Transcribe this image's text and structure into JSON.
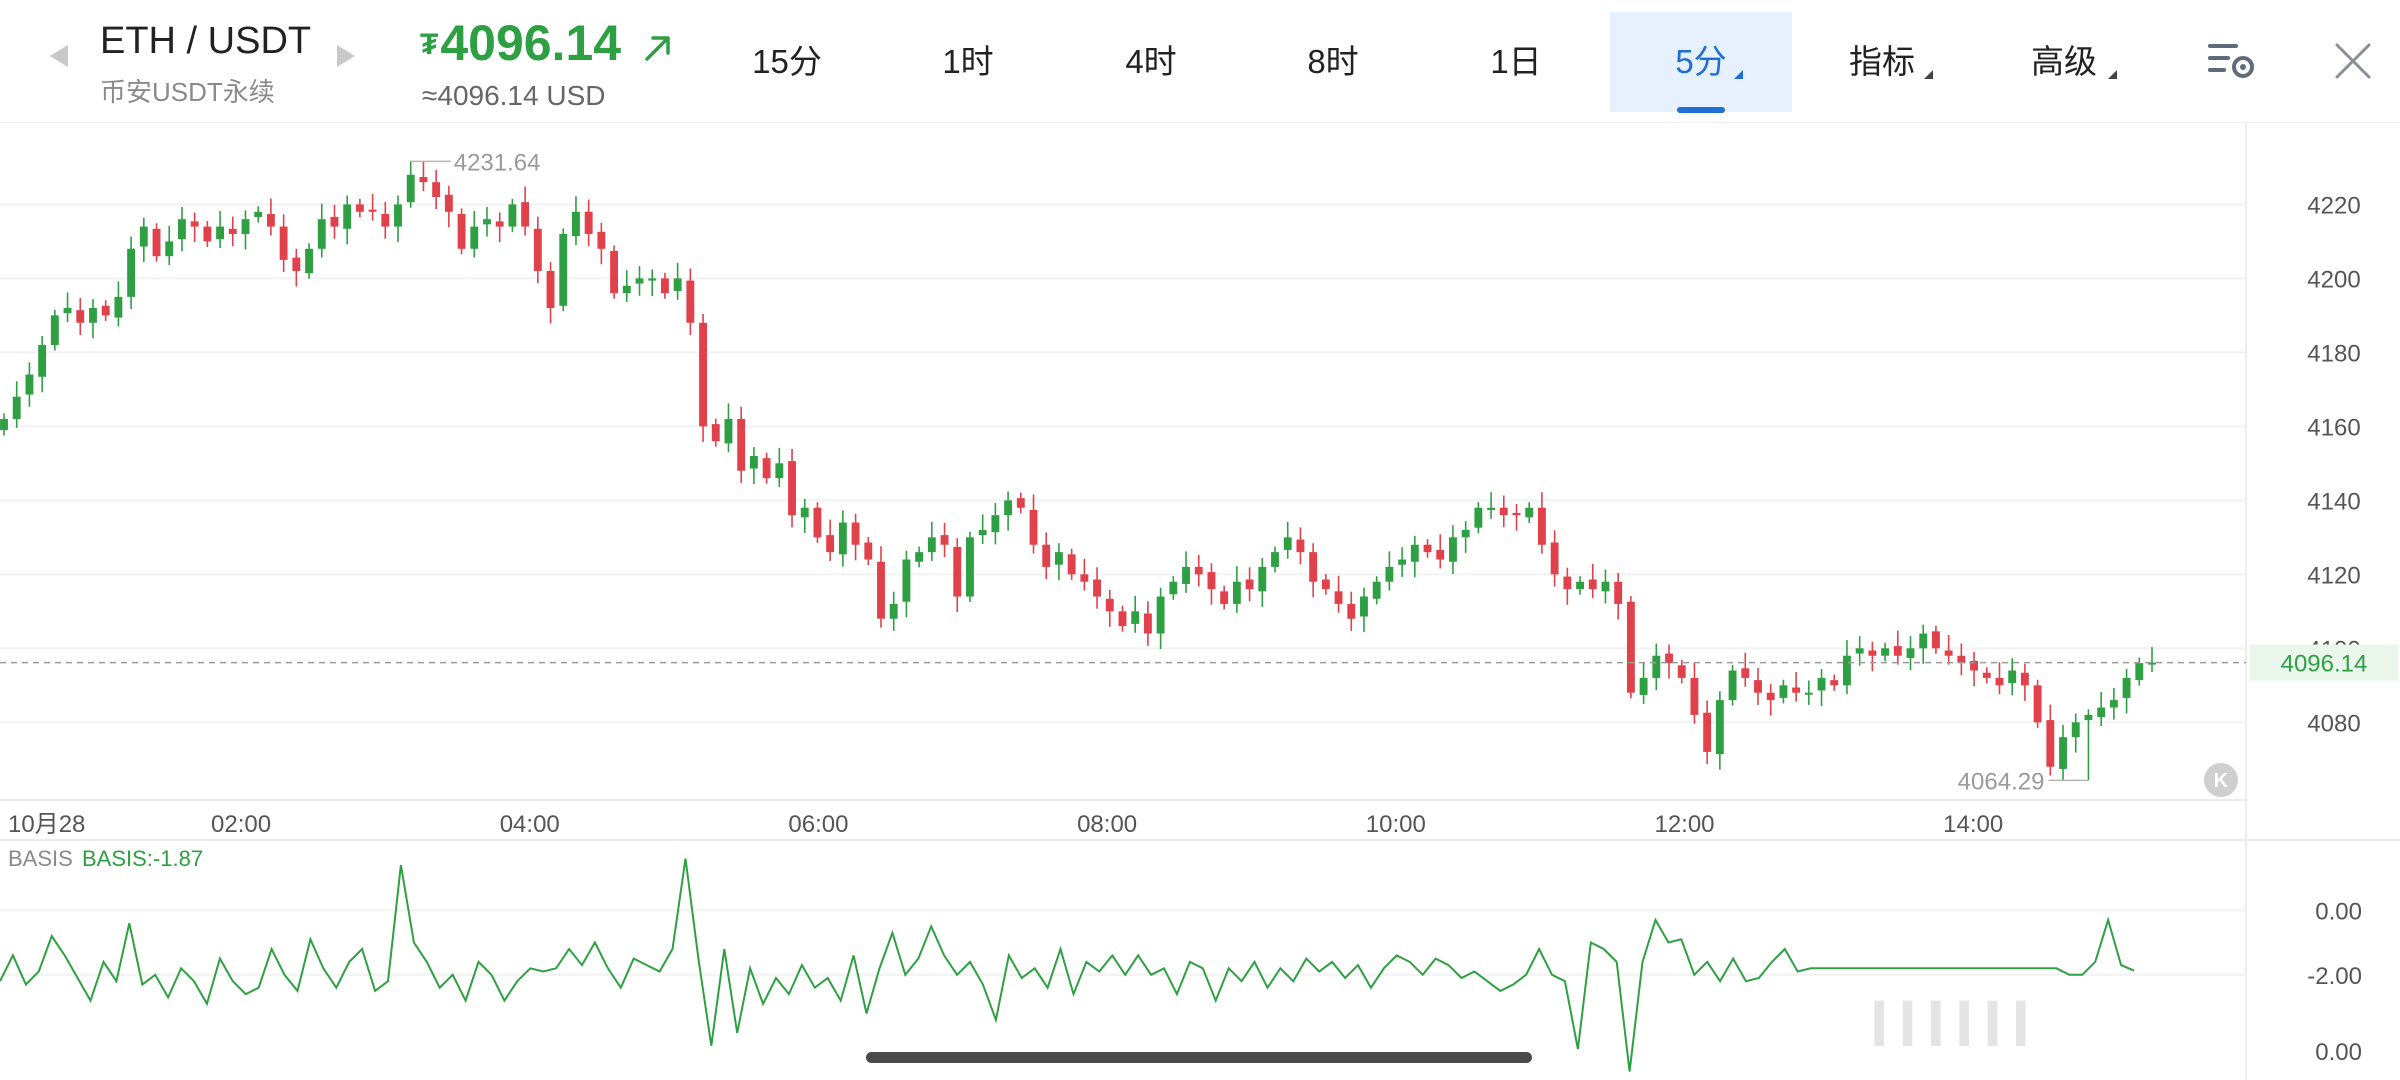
{
  "header": {
    "pair": "ETH / USDT",
    "market": "币安USDT永续",
    "currency_symbol": "₮",
    "price": "4096.14",
    "price_usd": "≈4096.14 USD",
    "up_color": "#2ea043",
    "down_color": "#e0414b",
    "accent": "#1f6fd0"
  },
  "tabs": [
    {
      "label": "15分",
      "active": false,
      "dropdown": false
    },
    {
      "label": "1时",
      "active": false,
      "dropdown": false
    },
    {
      "label": "4时",
      "active": false,
      "dropdown": false
    },
    {
      "label": "8时",
      "active": false,
      "dropdown": false
    },
    {
      "label": "1日",
      "active": false,
      "dropdown": false
    },
    {
      "label": "5分",
      "active": true,
      "dropdown": true
    },
    {
      "label": "指标",
      "active": false,
      "dropdown": true
    },
    {
      "label": "高级",
      "active": false,
      "dropdown": true
    }
  ],
  "icons": {
    "prev": "chevron-left-icon",
    "next": "chevron-right-icon",
    "trend": "arrow-up-right-icon",
    "settings": "chart-settings-icon",
    "close": "close-icon",
    "reset": "reset-k-icon"
  },
  "watermark": "IIIIII",
  "chart_data": {
    "type": "candlestick",
    "interval": "5分",
    "x_ticks": [
      {
        "label": "10月28",
        "hours": 0.63
      },
      {
        "label": "02:00",
        "hours": 2.0
      },
      {
        "label": "04:00",
        "hours": 4.0
      },
      {
        "label": "06:00",
        "hours": 6.0
      },
      {
        "label": "08:00",
        "hours": 8.0
      },
      {
        "label": "10:00",
        "hours": 10.0
      },
      {
        "label": "12:00",
        "hours": 12.0
      },
      {
        "label": "14:00",
        "hours": 14.0
      }
    ],
    "x_range_hours": [
      0.33,
      15.89
    ],
    "y_ticks": [
      4080,
      4100,
      4120,
      4140,
      4160,
      4180,
      4200,
      4220
    ],
    "y_range": [
      4059,
      4242
    ],
    "high_label": "4231.64",
    "low_label": "4064.29",
    "last_price_label": "4096.14",
    "last_price": 4096.14,
    "closes": [
      4162,
      4168,
      4174,
      4182,
      4190,
      4192,
      4188,
      4192,
      4190,
      4195,
      4208,
      4214,
      4206,
      4210,
      4216,
      4214,
      4210,
      4214,
      4212,
      4216,
      4218,
      4214,
      4205,
      4202,
      4208,
      4216,
      4214,
      4220,
      4218,
      4218,
      4214,
      4220,
      4228,
      4226,
      4222,
      4218,
      4208,
      4214,
      4216,
      4214,
      4220,
      4214,
      4202,
      4192,
      4212,
      4218,
      4212,
      4208,
      4196,
      4198,
      4200,
      4200,
      4196,
      4200,
      4188,
      4160,
      4156,
      4162,
      4148,
      4152,
      4146,
      4150,
      4136,
      4138,
      4130,
      4126,
      4134,
      4128,
      4124,
      4108,
      4112,
      4124,
      4126,
      4130,
      4128,
      4114,
      4130,
      4132,
      4136,
      4140,
      4138,
      4128,
      4122,
      4126,
      4120,
      4118,
      4114,
      4110,
      4106,
      4110,
      4104,
      4114,
      4118,
      4122,
      4120,
      4116,
      4112,
      4118,
      4116,
      4122,
      4126,
      4130,
      4126,
      4118,
      4116,
      4112,
      4108,
      4114,
      4118,
      4122,
      4124,
      4128,
      4126,
      4124,
      4130,
      4132,
      4138,
      4138,
      4136,
      4136,
      4138,
      4128,
      4120,
      4116,
      4118,
      4116,
      4118,
      4112,
      4088,
      4092,
      4098,
      4096,
      4092,
      4082,
      4072,
      4086,
      4094,
      4092,
      4088,
      4086,
      4090,
      4088,
      4088,
      4092,
      4090,
      4098,
      4100,
      4098,
      4100,
      4098,
      4100,
      4104,
      4100,
      4098,
      4096,
      4094,
      4092,
      4090,
      4094,
      4090,
      4080,
      4068,
      4076,
      4080,
      4082,
      4084,
      4086,
      4092,
      4096,
      4096.14
    ]
  },
  "basis": {
    "label": "BASIS",
    "value_label": "BASIS:-1.87",
    "y_ticks": [
      "0.00",
      "-2.00",
      "0.00"
    ],
    "y_range": [
      -5.2,
      1.0
    ],
    "color": "#2ea043",
    "values": [
      -2.2,
      -1.4,
      -2.3,
      -1.9,
      -0.8,
      -1.4,
      -2.1,
      -2.8,
      -1.6,
      -2.2,
      -0.4,
      -2.3,
      -2.0,
      -2.7,
      -1.8,
      -2.2,
      -2.9,
      -1.5,
      -2.2,
      -2.6,
      -2.4,
      -1.2,
      -2.0,
      -2.5,
      -0.9,
      -1.8,
      -2.4,
      -1.6,
      -1.2,
      -2.5,
      -2.2,
      1.4,
      -1.0,
      -1.6,
      -2.4,
      -2.0,
      -2.8,
      -1.6,
      -2.0,
      -2.8,
      -2.2,
      -1.8,
      -1.9,
      -1.8,
      -1.2,
      -1.7,
      -1.0,
      -1.8,
      -2.4,
      -1.5,
      -1.7,
      -1.9,
      -1.2,
      1.6,
      -1.5,
      -4.2,
      -1.2,
      -3.8,
      -1.8,
      -2.9,
      -2.1,
      -2.6,
      -1.7,
      -2.4,
      -2.1,
      -2.8,
      -1.4,
      -3.2,
      -1.8,
      -0.7,
      -2.0,
      -1.5,
      -0.5,
      -1.4,
      -2.0,
      -1.6,
      -2.3,
      -3.4,
      -1.4,
      -2.1,
      -1.8,
      -2.4,
      -1.2,
      -2.6,
      -1.6,
      -1.9,
      -1.4,
      -2.0,
      -1.4,
      -2.0,
      -1.8,
      -2.6,
      -1.6,
      -1.8,
      -2.8,
      -1.8,
      -2.2,
      -1.6,
      -2.4,
      -1.8,
      -2.2,
      -1.5,
      -1.9,
      -1.6,
      -2.1,
      -1.7,
      -2.4,
      -1.8,
      -1.4,
      -1.6,
      -2.0,
      -1.5,
      -1.7,
      -2.1,
      -1.9,
      -2.2,
      -2.5,
      -2.3,
      -2.0,
      -1.2,
      -2.0,
      -2.2,
      -4.3,
      -1.0,
      -1.2,
      -1.6,
      -5.0,
      -1.6,
      -0.3,
      -1.0,
      -0.9,
      -2.0,
      -1.6,
      -2.2,
      -1.5,
      -2.2,
      -2.1,
      -1.6,
      -1.2,
      -1.9,
      -1.8,
      -1.8,
      -1.8,
      -1.8,
      -1.8,
      -1.8,
      -1.8,
      -1.8,
      -1.8,
      -1.8,
      -1.8,
      -1.8,
      -1.8,
      -1.8,
      -1.8,
      -1.8,
      -1.8,
      -1.8,
      -1.8,
      -1.8,
      -2.0,
      -2.0,
      -1.6,
      -0.3,
      -1.7,
      -1.87
    ]
  }
}
